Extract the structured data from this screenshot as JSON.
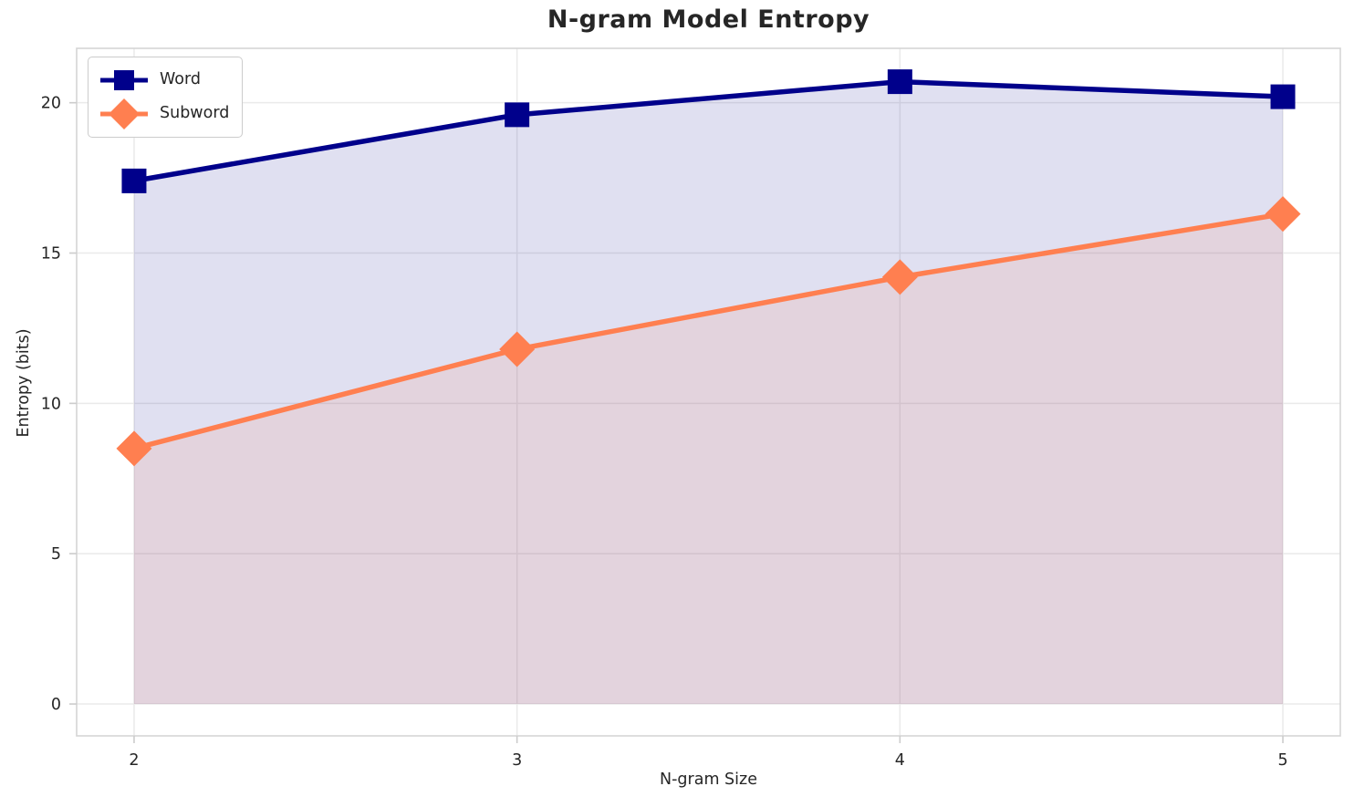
{
  "chart_data": {
    "type": "line",
    "title": "N-gram Model Entropy",
    "xlabel": "N-gram Size",
    "ylabel": "Entropy (bits)",
    "x": [
      2,
      3,
      4,
      5
    ],
    "xticks": [
      2,
      3,
      4,
      5
    ],
    "yticks": [
      0,
      5,
      10,
      15,
      20
    ],
    "xlim": [
      1.85,
      5.15
    ],
    "ylim": [
      -1.06,
      21.81
    ],
    "grid": true,
    "legend_position": "upper left",
    "background_color": "#ffffff",
    "grid_color": "#eaeaea",
    "spine_color": "#d5d5d5",
    "tick_color": "#cccccc",
    "text_color": "#262626",
    "series": [
      {
        "name": "Word",
        "marker": "square",
        "color": "#00008B",
        "fill_alpha": 0.12,
        "values": [
          17.4,
          19.6,
          20.7,
          20.2
        ]
      },
      {
        "name": "Subword",
        "marker": "diamond",
        "color": "#FF7F50",
        "fill_alpha": 0.12,
        "values": [
          8.5,
          11.8,
          14.2,
          16.3
        ]
      }
    ]
  }
}
